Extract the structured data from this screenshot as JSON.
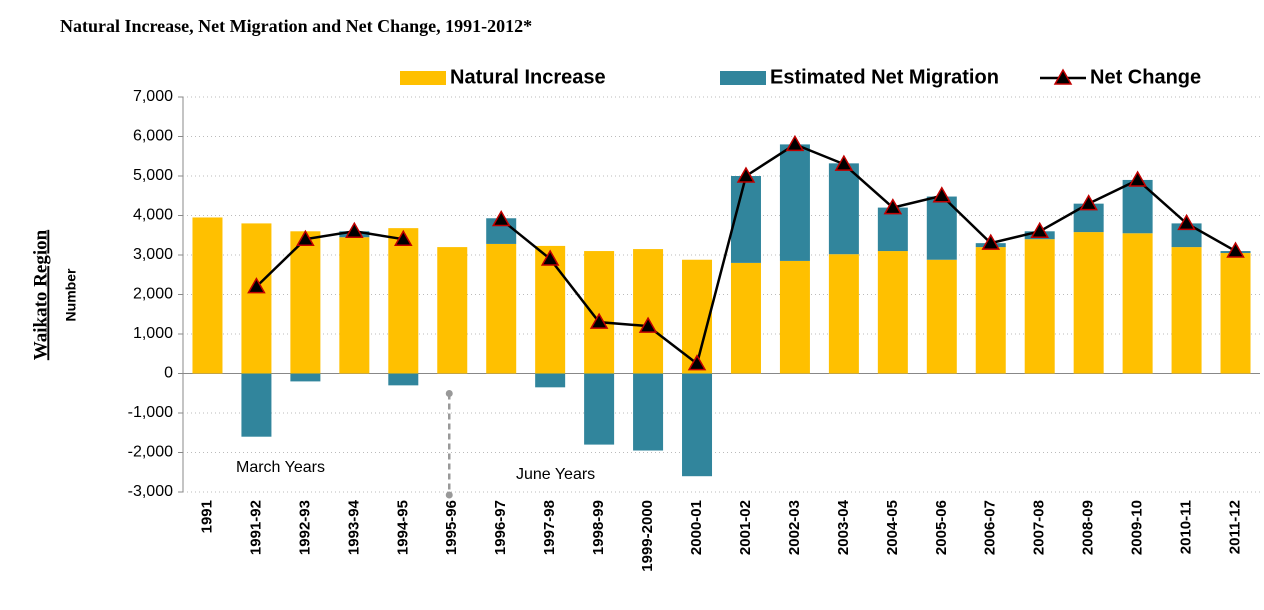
{
  "chart_data": {
    "type": "bar-line",
    "title": "Natural Increase, Net Migration and Net Change, 1991-2012*",
    "side_label": "Waikato Region",
    "ylabel": "Number",
    "annotations": [
      "March Years",
      "June Years"
    ],
    "categories": [
      "1991",
      "1991-92",
      "1992-93",
      "1993-94",
      "1994-95",
      "1995-96",
      "1996-97",
      "1997-98",
      "1998-99",
      "1999-2000",
      "2000-01",
      "2001-02",
      "2002-03",
      "2003-04",
      "2004-05",
      "2005-06",
      "2006-07",
      "2007-08",
      "2008-09",
      "2009-10",
      "2010-11",
      "2011-12"
    ],
    "series": [
      {
        "name": "Natural Increase",
        "type": "bar",
        "color": "#ffc000",
        "values": [
          3950,
          3800,
          3600,
          3450,
          3680,
          3200,
          3280,
          3230,
          3100,
          3150,
          2880,
          2800,
          2850,
          3020,
          3100,
          2880,
          3200,
          3400,
          3580,
          3550,
          3200,
          3050
        ]
      },
      {
        "name": "Estimated Net Migration",
        "type": "bar",
        "color": "#31859c",
        "values": [
          null,
          -1600,
          -200,
          150,
          -300,
          null,
          650,
          -350,
          -1800,
          -1950,
          -2600,
          2200,
          2950,
          2300,
          1100,
          1600,
          100,
          200,
          720,
          1350,
          600,
          50
        ]
      },
      {
        "name": "Net Change",
        "type": "line",
        "color": "#000000",
        "marker_color": "#c00000",
        "values": [
          null,
          2200,
          3400,
          3600,
          3400,
          null,
          3900,
          2900,
          1300,
          1200,
          250,
          5000,
          5800,
          5300,
          4200,
          4500,
          3300,
          3600,
          4300,
          4900,
          3800,
          3100
        ]
      }
    ],
    "ylim": [
      -3000,
      7000
    ],
    "yticks": [
      {
        "value": -3000,
        "label": "-3,000"
      },
      {
        "value": -2000,
        "label": "-2,000"
      },
      {
        "value": -1000,
        "label": "-1,000"
      },
      0,
      {
        "value": 1000,
        "label": "1,000"
      },
      {
        "value": 2000,
        "label": "2,000"
      },
      {
        "value": 3000,
        "label": "3,000"
      },
      {
        "value": 4000,
        "label": "4,000"
      },
      {
        "value": 5000,
        "label": "5,000"
      },
      {
        "value": 6000,
        "label": "6,000"
      },
      {
        "value": 7000,
        "label": "7,000"
      }
    ],
    "grid": true
  }
}
